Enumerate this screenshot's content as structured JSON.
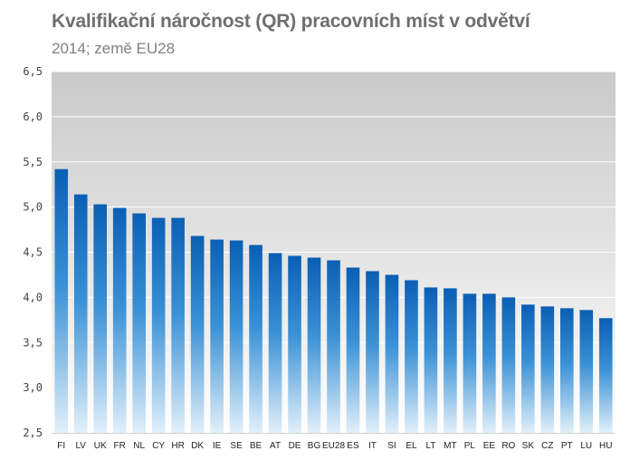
{
  "chart_data": {
    "type": "bar",
    "title": "Kvalifikační náročnost (QR)  pracovních míst v odvětví",
    "subtitle": "2014; země EU28",
    "xlabel": "",
    "ylabel": "",
    "ylim": [
      2.5,
      6.5
    ],
    "yticks": [
      "2,5",
      "3,0",
      "3,5",
      "4,0",
      "4,5",
      "5,0",
      "5,5",
      "6,0",
      "6,5"
    ],
    "grid": true,
    "legend": "none",
    "categories": [
      "FI",
      "LV",
      "UK",
      "FR",
      "NL",
      "CY",
      "HR",
      "DK",
      "IE",
      "SE",
      "BE",
      "AT",
      "DE",
      "BG",
      "EU28",
      "ES",
      "IT",
      "SI",
      "EL",
      "LT",
      "MT",
      "PL",
      "EE",
      "RO",
      "SK",
      "CZ",
      "PT",
      "LU",
      "HU"
    ],
    "values": [
      5.42,
      5.14,
      5.03,
      4.99,
      4.93,
      4.88,
      4.88,
      4.68,
      4.64,
      4.63,
      4.58,
      4.49,
      4.46,
      4.44,
      4.41,
      4.33,
      4.29,
      4.25,
      4.19,
      4.11,
      4.1,
      4.04,
      4.04,
      4.0,
      3.92,
      3.9,
      3.88,
      3.86,
      3.77
    ],
    "colors": {
      "bar_top": "#0a5fb4",
      "bar_mid": "#3c92d6",
      "bar_bottom": "#e2f0fa",
      "plot_bg_top": "#c9c9c9",
      "plot_bg_bottom": "#ffffff",
      "grid": "#ffffff"
    }
  }
}
